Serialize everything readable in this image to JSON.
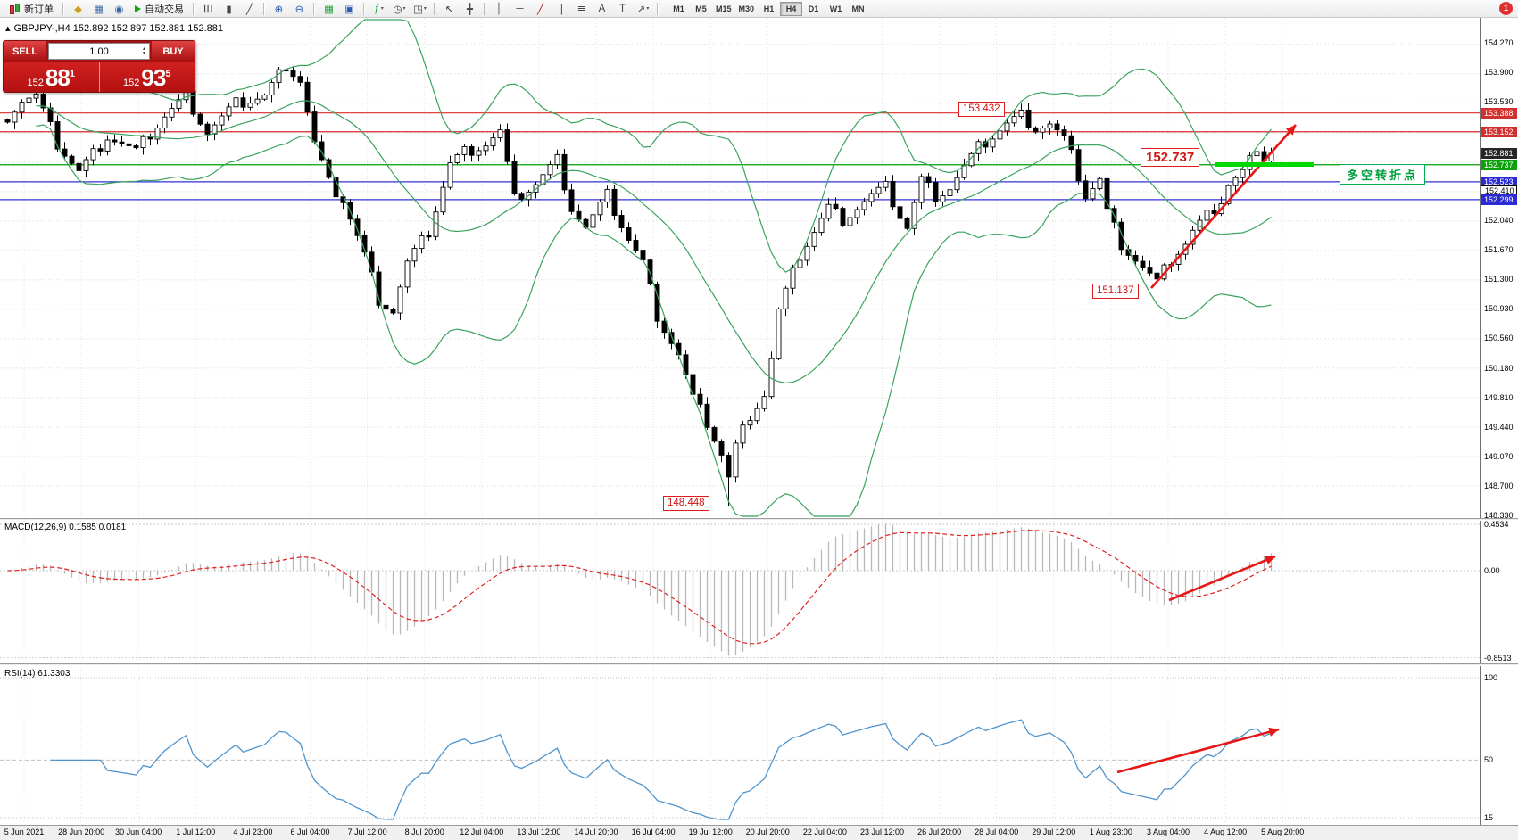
{
  "window": {
    "notification_count": "1"
  },
  "toolbar": {
    "new_order_label": "新订单",
    "autotrade_label": "自动交易",
    "timeframes": [
      "M1",
      "M5",
      "M15",
      "M30",
      "H1",
      "H4",
      "D1",
      "W1",
      "MN"
    ],
    "active_timeframe": "H4",
    "icon_groups": [
      {
        "id": "tb-group1",
        "icons": [
          {
            "name": "market-watch-icon",
            "glyph": "◆",
            "color": "#c9a227"
          },
          {
            "name": "data-window-icon",
            "glyph": "▦",
            "color": "#3868a8"
          },
          {
            "name": "navigator-icon",
            "glyph": "◉",
            "color": "#3868a8"
          }
        ]
      },
      {
        "id": "tb-group2",
        "icons": [
          {
            "sep": true
          },
          {
            "name": "bar-chart-icon",
            "glyph": "☰",
            "rot": true
          },
          {
            "name": "candlestick-chart-icon",
            "glyph": "▮"
          },
          {
            "name": "line-chart-icon",
            "glyph": "╱"
          },
          {
            "sep": true
          },
          {
            "name": "zoom-in-icon",
            "glyph": "⊕",
            "color": "#2a5db0"
          },
          {
            "name": "zoom-out-icon",
            "glyph": "⊖",
            "color": "#2a5db0"
          },
          {
            "sep": true
          },
          {
            "name": "tile-windows-icon",
            "glyph": "▦",
            "color": "#1d9e3a"
          },
          {
            "name": "arrange-windows-icon",
            "glyph": "▣",
            "color": "#2a5db0"
          },
          {
            "sep": true
          },
          {
            "name": "indicators-icon",
            "glyph": "ƒ",
            "color": "#1d9e3a",
            "caret": true
          },
          {
            "name": "periods-icon",
            "glyph": "◷",
            "caret": true
          },
          {
            "name": "templates-icon",
            "glyph": "◳",
            "caret": true
          },
          {
            "sep": true
          },
          {
            "name": "cursor-icon",
            "glyph": "↖"
          },
          {
            "name": "crosshair-icon",
            "glyph": "╋"
          },
          {
            "sep": true
          },
          {
            "name": "vertical-line-icon",
            "glyph": "│"
          },
          {
            "name": "horizontal-line-icon",
            "glyph": "─"
          },
          {
            "name": "trendline-icon",
            "glyph": "╱",
            "color": "#b02020"
          },
          {
            "name": "channel-icon",
            "glyph": "∥"
          },
          {
            "name": "fibonacci-icon",
            "glyph": "≣"
          },
          {
            "name": "text-icon",
            "glyph": "A"
          },
          {
            "name": "text-label-icon",
            "glyph": "T"
          },
          {
            "name": "arrows-icon",
            "glyph": "↗",
            "caret": true
          },
          {
            "sep": true
          }
        ]
      }
    ]
  },
  "chart": {
    "symbol_icon": "▴",
    "symbol_info": "GBPJPY-,H4  152.892 152.897 152.881 152.881",
    "trade_panel": {
      "sell_label": "SELL",
      "buy_label": "BUY",
      "volume": "1.00",
      "bid_prefix": "152",
      "bid_big": "88",
      "bid_sup": "1",
      "ask_prefix": "152",
      "ask_big": "93",
      "ask_sup": "5"
    }
  },
  "chart_data": {
    "type": "candlestick",
    "title": "GBPJPY-,H4",
    "symbol": "GBPJPY-",
    "timeframe": "H4",
    "price_min": 148.33,
    "price_max": 154.27,
    "price_step": 0.37,
    "price_axis_plain": [
      "154.270",
      "153.900",
      "153.530",
      "152.040",
      "151.670",
      "151.300",
      "150.930",
      "150.560",
      "150.180",
      "149.810",
      "149.440",
      "149.070",
      "148.700",
      "148.330"
    ],
    "price_markers": [
      {
        "label": "153.388",
        "bg": "#d32f2f",
        "fg": "#ffffff"
      },
      {
        "label": "153.152",
        "bg": "#d32f2f",
        "fg": "#ffffff"
      },
      {
        "label": "152.881",
        "bg": "#262626",
        "fg": "#ffffff"
      },
      {
        "label": "152.737",
        "bg": "#0aa10a",
        "fg": "#ffffff"
      },
      {
        "label": "152.523",
        "bg": "#2b2bd4",
        "fg": "#ffffff"
      },
      {
        "label": "152.410",
        "bg": "#ffffff",
        "fg": "#000000",
        "border": "#000000"
      },
      {
        "label": "152.299",
        "bg": "#2b2bd4",
        "fg": "#ffffff"
      }
    ],
    "hlines": [
      {
        "price": 153.388,
        "color": "#dd2a2a"
      },
      {
        "price": 153.152,
        "color": "#dd2a2a"
      },
      {
        "price": 152.737,
        "color": "#00a000"
      },
      {
        "price": 152.523,
        "color": "#3030d8"
      },
      {
        "price": 152.299,
        "color": "#3030d8"
      }
    ],
    "annotations": {
      "high_label": "153.432",
      "mid_label": "152.737",
      "low_label": "151.137",
      "bottom_label": "148.448",
      "turning_point": "多空转折点"
    },
    "candles": {
      "count": 178,
      "bull_fill": "#ffffff",
      "bear_fill": "#000000",
      "outline": "#000000",
      "anchors": [
        [
          0,
          153.35
        ],
        [
          2,
          153.55
        ],
        [
          4,
          153.6
        ],
        [
          7,
          153.0
        ],
        [
          10,
          152.65
        ],
        [
          14,
          153.1
        ],
        [
          18,
          152.9
        ],
        [
          22,
          153.35
        ],
        [
          25,
          153.6
        ],
        [
          28,
          153.15
        ],
        [
          32,
          153.5
        ],
        [
          36,
          153.6
        ],
        [
          39,
          154.0
        ],
        [
          41,
          153.8
        ],
        [
          43,
          153.0
        ],
        [
          45,
          152.5
        ],
        [
          47,
          152.3
        ],
        [
          50,
          151.6
        ],
        [
          52,
          151.05
        ],
        [
          54,
          150.9
        ],
        [
          56,
          151.5
        ],
        [
          59,
          151.9
        ],
        [
          62,
          152.75
        ],
        [
          64,
          152.9
        ],
        [
          67,
          153.0
        ],
        [
          69,
          153.15
        ],
        [
          71,
          152.3
        ],
        [
          74,
          152.5
        ],
        [
          77,
          152.8
        ],
        [
          79,
          152.2
        ],
        [
          81,
          151.95
        ],
        [
          84,
          152.35
        ],
        [
          87,
          151.8
        ],
        [
          89,
          151.5
        ],
        [
          91,
          150.85
        ],
        [
          94,
          150.35
        ],
        [
          96,
          149.8
        ],
        [
          98,
          149.5
        ],
        [
          100,
          149.1
        ],
        [
          101,
          148.8
        ],
        [
          102,
          149.2
        ],
        [
          104,
          149.6
        ],
        [
          106,
          149.85
        ],
        [
          107,
          150.3
        ],
        [
          108,
          150.9
        ],
        [
          111,
          151.6
        ],
        [
          113,
          151.9
        ],
        [
          115,
          152.2
        ],
        [
          117,
          152.05
        ],
        [
          119,
          152.2
        ],
        [
          121,
          152.35
        ],
        [
          123,
          152.45
        ],
        [
          125,
          152.1
        ],
        [
          126,
          151.95
        ],
        [
          128,
          152.55
        ],
        [
          130,
          152.35
        ],
        [
          132,
          152.45
        ],
        [
          134,
          152.7
        ],
        [
          136,
          152.95
        ],
        [
          138,
          153.1
        ],
        [
          140,
          153.25
        ],
        [
          142,
          153.36
        ],
        [
          144,
          153.2
        ],
        [
          146,
          153.25
        ],
        [
          148,
          153.05
        ],
        [
          149,
          152.85
        ],
        [
          151,
          152.35
        ],
        [
          153,
          152.55
        ],
        [
          154,
          152.15
        ],
        [
          156,
          151.75
        ],
        [
          158,
          151.55
        ],
        [
          159,
          151.45
        ],
        [
          161,
          151.25
        ],
        [
          163,
          151.55
        ],
        [
          165,
          151.75
        ],
        [
          166,
          151.9
        ],
        [
          168,
          152.1
        ],
        [
          170,
          152.3
        ],
        [
          171,
          152.5
        ],
        [
          173,
          152.65
        ],
        [
          174,
          152.8
        ],
        [
          176,
          152.85
        ],
        [
          177,
          152.881
        ]
      ],
      "wick_lows": [
        [
          101,
          148.448
        ],
        [
          161,
          151.137
        ]
      ],
      "wick_highs": [
        [
          39,
          154.04
        ],
        [
          142,
          153.432
        ]
      ]
    },
    "bollinger": {
      "period": 20,
      "deviation": 2,
      "color": "#3aa35e"
    },
    "macd": {
      "label": "MACD(12,26,9) 0.1585 0.0181",
      "fast": 12,
      "slow": 26,
      "signal": 9,
      "levels": [
        "0.4534",
        "0.00",
        "-0.8513"
      ],
      "histogram_color": "#b9b9b9",
      "signal_color": "#e02020"
    },
    "rsi": {
      "label": "RSI(14) 61.3303",
      "period": 14,
      "current": "61.3303",
      "levels": [
        "100",
        "50",
        "15"
      ],
      "color": "#4f94cd"
    },
    "time_labels": [
      "5 Jun 2021",
      "28 Jun 20:00",
      "30 Jun 04:00",
      "1 Jul 12:00",
      "4 Jul 23:00",
      "6 Jul 04:00",
      "7 Jul 12:00",
      "8 Jul 20:00",
      "12 Jul 04:00",
      "13 Jul 12:00",
      "14 Jul 20:00",
      "16 Jul 04:00",
      "19 Jul 12:00",
      "20 Jul 20:00",
      "22 Jul 04:00",
      "23 Jul 12:00",
      "26 Jul 20:00",
      "28 Jul 04:00",
      "29 Jul 12:00",
      "1 Aug 23:00",
      "3 Aug 04:00",
      "4 Aug 12:00",
      "5 Aug 20:00"
    ]
  }
}
